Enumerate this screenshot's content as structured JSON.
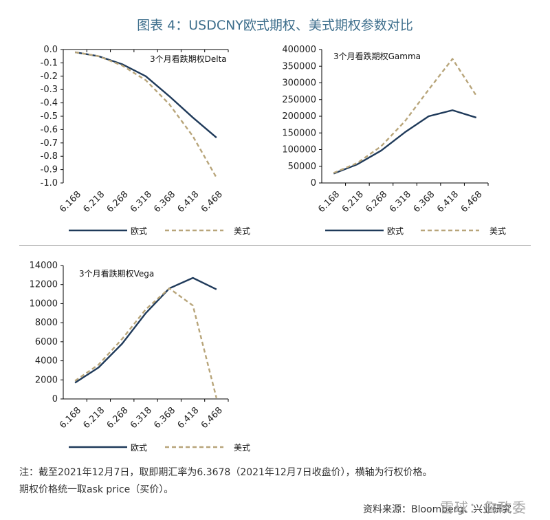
{
  "title": "图表 4：USDCNY欧式期权、美式期权参数对比",
  "footnote_line1": "注：截至2021年12月7日，取即期汇率为6.3678（2021年12月7日收盘价），横轴为行权价格。",
  "footnote_line2": "期权价格统一取ask price（买价）。",
  "source": "资料来源：Bloomberg、兴业研究",
  "watermark": "雪球：詹政委",
  "colors": {
    "european": "#1f3a5a",
    "american": "#b8a57a",
    "axis": "#000000"
  },
  "chart_data": [
    {
      "type": "line",
      "annotation": "3个月看跌期权Delta",
      "categories": [
        "6.168",
        "6.218",
        "6.268",
        "6.318",
        "6.368",
        "6.418",
        "6.468"
      ],
      "ylim": [
        -1.0,
        0.0
      ],
      "yticks": [
        "0.0",
        "-0.1",
        "-0.2",
        "-0.3",
        "-0.4",
        "-0.5",
        "-0.6",
        "-0.7",
        "-0.8",
        "-0.9",
        "-1.0"
      ],
      "series": [
        {
          "name": "欧式",
          "style": "solid",
          "values": [
            -0.02,
            -0.05,
            -0.11,
            -0.2,
            -0.35,
            -0.51,
            -0.66
          ]
        },
        {
          "name": "美式",
          "style": "dashed",
          "values": [
            -0.02,
            -0.05,
            -0.12,
            -0.23,
            -0.41,
            -0.65,
            -0.96
          ]
        }
      ],
      "legend": "bottom"
    },
    {
      "type": "line",
      "annotation": "3个月看跌期权Gamma",
      "categories": [
        "6.168",
        "6.218",
        "6.268",
        "6.318",
        "6.368",
        "6.418",
        "6.468"
      ],
      "ylim": [
        0,
        400000
      ],
      "yticks": [
        "400000",
        "350000",
        "300000",
        "250000",
        "200000",
        "150000",
        "100000",
        "50000",
        "0"
      ],
      "series": [
        {
          "name": "欧式",
          "style": "solid",
          "values": [
            28000,
            56000,
            97000,
            152000,
            200000,
            218000,
            196000
          ]
        },
        {
          "name": "美式",
          "style": "dashed",
          "values": [
            30000,
            60000,
            110000,
            185000,
            280000,
            372000,
            262000
          ]
        }
      ],
      "legend": "bottom"
    },
    {
      "type": "line",
      "annotation": "3个月看跌期权Vega",
      "categories": [
        "6.168",
        "6.218",
        "6.268",
        "6.318",
        "6.368",
        "6.418",
        "6.468"
      ],
      "ylim": [
        0,
        14000
      ],
      "yticks": [
        "14000",
        "12000",
        "10000",
        "8000",
        "6000",
        "4000",
        "2000",
        "0"
      ],
      "series": [
        {
          "name": "欧式",
          "style": "solid",
          "values": [
            1700,
            3300,
            5800,
            9000,
            11600,
            12700,
            11500
          ]
        },
        {
          "name": "美式",
          "style": "dashed",
          "values": [
            1900,
            3600,
            6300,
            9400,
            11600,
            9800,
            100
          ]
        }
      ],
      "legend": "bottom"
    }
  ]
}
